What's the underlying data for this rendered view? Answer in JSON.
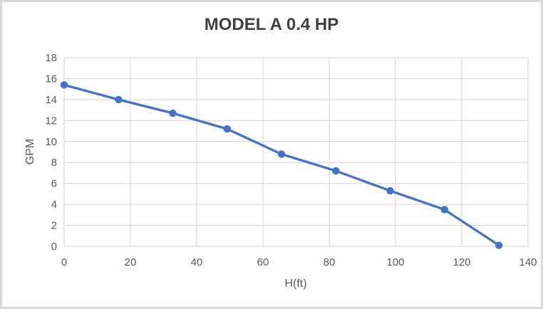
{
  "chart_data": {
    "type": "line",
    "title": "MODEL A 0.4 HP",
    "xlabel": "H(ft)",
    "ylabel": "GPM",
    "x": [
      0,
      16.4,
      32.8,
      49.2,
      65.6,
      82,
      98.4,
      114.8,
      131.2
    ],
    "y": [
      15.4,
      14,
      12.7,
      11.2,
      8.8,
      7.2,
      5.3,
      3.5,
      0.1
    ],
    "xlim": [
      0,
      140
    ],
    "ylim": [
      0,
      18
    ],
    "xticks": [
      0,
      20,
      40,
      60,
      80,
      100,
      120,
      140
    ],
    "yticks": [
      0,
      2,
      4,
      6,
      8,
      10,
      12,
      14,
      16,
      18
    ],
    "grid": true,
    "legend": "none",
    "colors": {
      "line": "#4472C4",
      "marker": "#4472C4",
      "gridline": "#D9D9D9",
      "axis_text": "#595959",
      "title_text": "#404040",
      "frame_border": "#D9D9D9",
      "background": "#FFFFFF"
    }
  }
}
